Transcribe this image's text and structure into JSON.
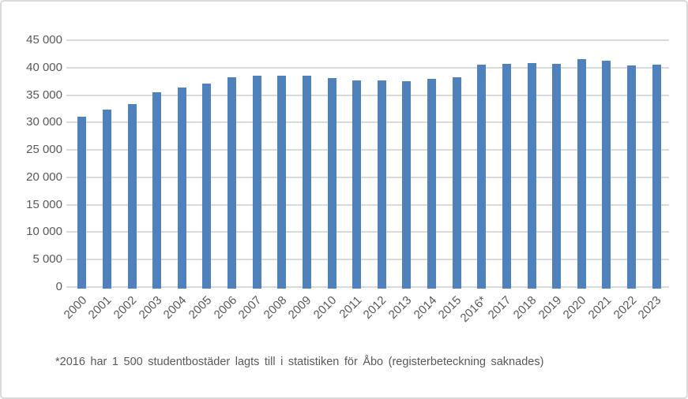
{
  "chart": {
    "bar_color": "#4F81BD",
    "gridline_color": "#D9D9D9",
    "label_color": "#595959",
    "frame_color": "#D9D9D9"
  },
  "chart_data": {
    "type": "bar",
    "title": "",
    "xlabel": "",
    "ylabel": "",
    "categories": [
      "2000",
      "2001",
      "2002",
      "2003",
      "2004",
      "2005",
      "2006",
      "2007",
      "2008",
      "2009",
      "2010",
      "2011",
      "2012",
      "2013",
      "2014",
      "2015",
      "2016*",
      "2017",
      "2018",
      "2019",
      "2020",
      "2021",
      "2022",
      "2023"
    ],
    "values": [
      31100,
      32300,
      33400,
      35500,
      36400,
      37100,
      38200,
      38500,
      38600,
      38600,
      38100,
      37700,
      37700,
      37500,
      38000,
      38300,
      40600,
      40700,
      40900,
      40700,
      41500,
      41300,
      40400,
      40600
    ],
    "ylim": [
      0,
      45000
    ],
    "ytick_interval": 5000,
    "ytick_labels": [
      "0",
      "5 000",
      "10 000",
      "15 000",
      "20 000",
      "25 000",
      "30 000",
      "35 000",
      "40 000",
      "45 000"
    ],
    "grid": true,
    "legend": false,
    "footnote": "*2016 har 1 500 studentbostäder lagts till i statistiken för Åbo (registerbeteckning saknades)"
  }
}
